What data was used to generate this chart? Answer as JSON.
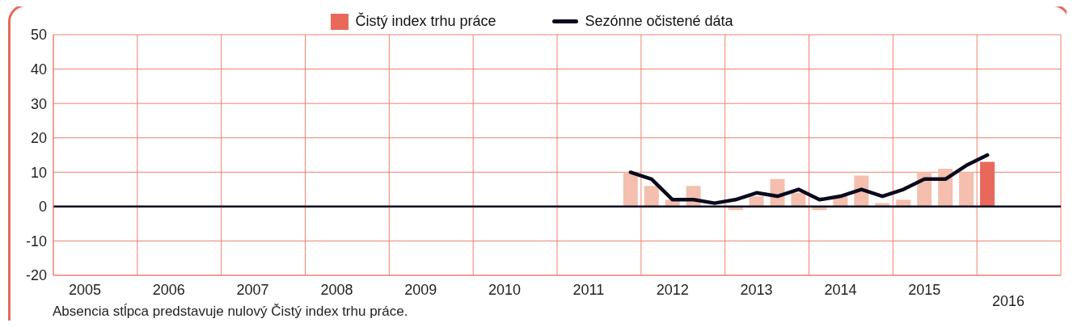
{
  "chart_data": {
    "type": "bar",
    "categories": [
      null,
      "2005",
      null,
      null,
      null,
      "2006",
      null,
      null,
      null,
      "2007",
      null,
      null,
      null,
      "2008",
      null,
      null,
      null,
      "2009",
      null,
      null,
      null,
      "2010",
      null,
      null,
      null,
      "2011",
      null,
      null,
      null,
      "2012",
      null,
      null,
      null,
      "2013",
      null,
      null,
      null,
      "2014",
      null,
      null,
      null,
      "2015",
      null,
      null,
      null,
      "2016",
      null,
      null
    ],
    "series": [
      {
        "name": "Čistý index trhu práce",
        "colors": [
          null,
          null,
          null,
          null,
          null,
          null,
          null,
          null,
          null,
          null,
          null,
          null,
          null,
          null,
          null,
          null,
          null,
          null,
          null,
          null,
          null,
          null,
          null,
          null,
          null,
          null,
          null,
          "#f4bfae",
          "#f4bfae",
          "#f4bfae",
          "#f4bfae",
          "#f4bfae",
          "#f4bfae",
          "#f4bfae",
          "#f4bfae",
          "#f4bfae",
          "#f4bfae",
          "#f4bfae",
          "#f4bfae",
          "#f4bfae",
          "#f4bfae",
          "#f4bfae",
          "#f4bfae",
          "#f4bfae",
          "#e8695a",
          null,
          null,
          null
        ],
        "values": [
          null,
          null,
          null,
          null,
          null,
          null,
          null,
          null,
          null,
          null,
          null,
          null,
          null,
          null,
          null,
          null,
          null,
          null,
          null,
          null,
          null,
          null,
          null,
          null,
          null,
          null,
          null,
          10,
          6,
          2,
          6,
          0,
          -1,
          3,
          8,
          4,
          -1,
          3,
          9,
          1,
          2,
          10,
          11,
          10,
          13,
          null,
          null,
          null
        ]
      },
      {
        "name": "Sezónne očistené dáta",
        "type": "line",
        "color": "#0a0a1e",
        "values": [
          null,
          null,
          null,
          null,
          null,
          null,
          null,
          null,
          null,
          null,
          null,
          null,
          null,
          null,
          null,
          null,
          null,
          null,
          null,
          null,
          null,
          null,
          null,
          null,
          null,
          null,
          null,
          10,
          8,
          2,
          2,
          1,
          2,
          4,
          3,
          5,
          2,
          3,
          5,
          3,
          5,
          8,
          8,
          12,
          15,
          null,
          null,
          null
        ]
      }
    ],
    "ylim": [
      -20,
      50
    ],
    "yticks": [
      -20,
      -10,
      0,
      10,
      20,
      30,
      40,
      50
    ],
    "grid": true,
    "legend": "top",
    "marker": "none",
    "line_style": "solid",
    "ref_lines": [
      {
        "axis": "y",
        "value": 0,
        "color": "#0a0a1e"
      }
    ],
    "annotations": [
      "Absencia stĺpca predstavuje nulový Čistý index trhu práce."
    ]
  }
}
